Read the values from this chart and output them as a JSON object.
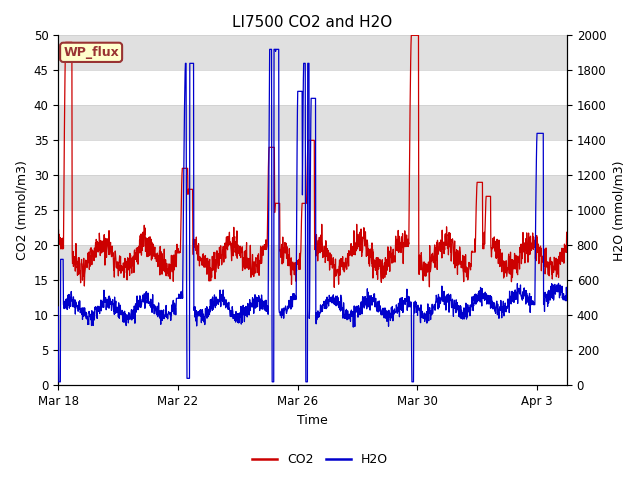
{
  "title": "LI7500 CO2 and H2O",
  "xlabel": "Time",
  "ylabel_left": "CO2 (mmol/m3)",
  "ylabel_right": "H2O (mmol/m3)",
  "ylim_left": [
    0,
    50
  ],
  "ylim_right": [
    0,
    2000
  ],
  "yticks_left": [
    0,
    5,
    10,
    15,
    20,
    25,
    30,
    35,
    40,
    45,
    50
  ],
  "yticks_right": [
    0,
    200,
    400,
    600,
    800,
    1000,
    1200,
    1400,
    1600,
    1800,
    2000
  ],
  "xtick_labels": [
    "Mar 18",
    "Mar 22",
    "Mar 26",
    "Mar 30",
    "Apr 3"
  ],
  "xtick_days": [
    0,
    4,
    8,
    12,
    16
  ],
  "n_days": 17,
  "co2_color": "#cc0000",
  "h2o_color": "#0000cc",
  "background_color": "#ffffff",
  "plot_bg_color": "#ffffff",
  "band_color": "#e0e0e0",
  "wp_flux_bg": "#ffffcc",
  "wp_flux_border": "#993333",
  "wp_flux_text": "#993333",
  "title_fontsize": 11,
  "axis_label_fontsize": 9,
  "tick_fontsize": 8.5,
  "legend_fontsize": 9,
  "line_width": 0.9
}
